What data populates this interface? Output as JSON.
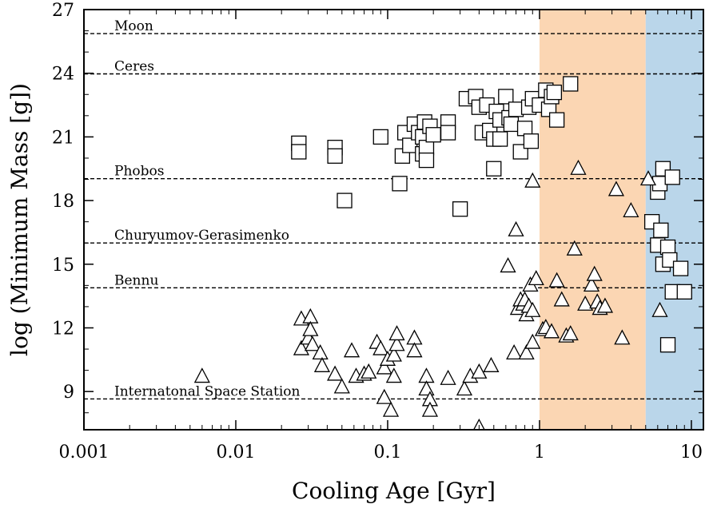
{
  "chart_data": {
    "type": "scatter",
    "title": "",
    "xlabel": "Cooling Age [Gyr]",
    "ylabel": "log (Minimum Mass [g])",
    "xscale": "log",
    "xlim": [
      0.001,
      12
    ],
    "ylim": [
      7.2,
      27
    ],
    "x_tick_values": [
      0.001,
      0.01,
      0.1,
      1,
      10
    ],
    "x_tick_labels": [
      "0.001",
      "0.01",
      "0.1",
      "1",
      "10"
    ],
    "y_tick_values": [
      9,
      12,
      15,
      18,
      21,
      24,
      27
    ],
    "y_tick_labels": [
      "9",
      "12",
      "15",
      "18",
      "21",
      "24",
      "27"
    ],
    "shaded_regions": [
      {
        "x_from": 1,
        "x_to": 5,
        "color": "#fbd6b3"
      },
      {
        "x_from": 5,
        "x_to": 12,
        "color": "#bad6ea"
      }
    ],
    "reference_lines": [
      {
        "label": "Moon",
        "y": 25.87
      },
      {
        "label": "Ceres",
        "y": 23.97
      },
      {
        "label": "Phobos",
        "y": 19.03
      },
      {
        "label": "Churyumov-Gerasimenko",
        "y": 16.0
      },
      {
        "label": "Bennu",
        "y": 13.89
      },
      {
        "label": "Internatonal Space Station",
        "y": 8.65
      }
    ],
    "series": [
      {
        "name": "squares",
        "marker": "square",
        "points": [
          [
            0.026,
            20.7
          ],
          [
            0.026,
            20.3
          ],
          [
            0.045,
            20.5
          ],
          [
            0.045,
            20.1
          ],
          [
            0.052,
            18.0
          ],
          [
            0.09,
            21.0
          ],
          [
            0.12,
            18.8
          ],
          [
            0.125,
            20.1
          ],
          [
            0.13,
            21.2
          ],
          [
            0.14,
            20.6
          ],
          [
            0.15,
            21.6
          ],
          [
            0.16,
            21.2
          ],
          [
            0.17,
            20.2
          ],
          [
            0.17,
            21.0
          ],
          [
            0.175,
            21.7
          ],
          [
            0.18,
            20.5
          ],
          [
            0.18,
            19.9
          ],
          [
            0.19,
            21.5
          ],
          [
            0.2,
            21.1
          ],
          [
            0.25,
            21.7
          ],
          [
            0.25,
            21.2
          ],
          [
            0.3,
            17.6
          ],
          [
            0.33,
            22.8
          ],
          [
            0.38,
            22.9
          ],
          [
            0.4,
            22.4
          ],
          [
            0.42,
            21.2
          ],
          [
            0.45,
            22.5
          ],
          [
            0.47,
            21.3
          ],
          [
            0.5,
            19.5
          ],
          [
            0.5,
            20.9
          ],
          [
            0.52,
            22.2
          ],
          [
            0.55,
            21.8
          ],
          [
            0.55,
            20.9
          ],
          [
            0.6,
            22.9
          ],
          [
            0.63,
            21.9
          ],
          [
            0.65,
            21.6
          ],
          [
            0.7,
            22.3
          ],
          [
            0.75,
            20.3
          ],
          [
            0.8,
            21.4
          ],
          [
            0.85,
            22.4
          ],
          [
            0.88,
            20.8
          ],
          [
            0.9,
            22.8
          ],
          [
            1.0,
            22.5
          ],
          [
            1.1,
            23.2
          ],
          [
            1.15,
            22.3
          ],
          [
            1.2,
            22.9
          ],
          [
            1.25,
            23.1
          ],
          [
            1.3,
            21.8
          ],
          [
            1.6,
            23.5
          ],
          [
            6.5,
            19.5
          ],
          [
            6.0,
            18.4
          ],
          [
            6.2,
            18.8
          ],
          [
            7.5,
            19.1
          ],
          [
            5.5,
            17.0
          ],
          [
            6.3,
            16.6
          ],
          [
            6.0,
            15.9
          ],
          [
            7.0,
            15.8
          ],
          [
            6.5,
            15.0
          ],
          [
            7.2,
            15.2
          ],
          [
            8.5,
            14.8
          ],
          [
            7.5,
            13.7
          ],
          [
            9.0,
            13.7
          ],
          [
            7.0,
            11.2
          ]
        ]
      },
      {
        "name": "triangles",
        "marker": "triangle",
        "points": [
          [
            0.006,
            9.7
          ],
          [
            0.027,
            12.4
          ],
          [
            0.027,
            11.0
          ],
          [
            0.03,
            11.5
          ],
          [
            0.031,
            12.5
          ],
          [
            0.031,
            11.9
          ],
          [
            0.032,
            11.2
          ],
          [
            0.036,
            10.8
          ],
          [
            0.037,
            10.2
          ],
          [
            0.045,
            9.8
          ],
          [
            0.05,
            9.2
          ],
          [
            0.058,
            10.9
          ],
          [
            0.062,
            9.7
          ],
          [
            0.07,
            9.8
          ],
          [
            0.075,
            9.9
          ],
          [
            0.085,
            11.3
          ],
          [
            0.09,
            11.0
          ],
          [
            0.095,
            10.1
          ],
          [
            0.095,
            8.7
          ],
          [
            0.1,
            10.5
          ],
          [
            0.105,
            8.1
          ],
          [
            0.11,
            9.7
          ],
          [
            0.11,
            10.7
          ],
          [
            0.115,
            11.2
          ],
          [
            0.115,
            11.7
          ],
          [
            0.15,
            11.5
          ],
          [
            0.15,
            10.9
          ],
          [
            0.18,
            9.7
          ],
          [
            0.18,
            9.1
          ],
          [
            0.19,
            8.6
          ],
          [
            0.19,
            8.1
          ],
          [
            0.25,
            9.6
          ],
          [
            0.32,
            9.1
          ],
          [
            0.35,
            9.7
          ],
          [
            0.4,
            7.3
          ],
          [
            0.4,
            9.9
          ],
          [
            0.48,
            10.2
          ],
          [
            0.62,
            14.9
          ],
          [
            0.68,
            10.8
          ],
          [
            0.7,
            16.6
          ],
          [
            0.72,
            12.9
          ],
          [
            0.75,
            13.3
          ],
          [
            0.78,
            13.1
          ],
          [
            0.8,
            13.3
          ],
          [
            0.82,
            12.6
          ],
          [
            0.82,
            10.8
          ],
          [
            0.85,
            13.0
          ],
          [
            0.87,
            14.0
          ],
          [
            0.9,
            12.8
          ],
          [
            0.9,
            11.3
          ],
          [
            0.9,
            18.9
          ],
          [
            0.95,
            14.3
          ],
          [
            1.05,
            11.9
          ],
          [
            1.1,
            12.0
          ],
          [
            1.2,
            11.8
          ],
          [
            1.3,
            14.2
          ],
          [
            1.4,
            13.3
          ],
          [
            1.5,
            11.6
          ],
          [
            1.6,
            11.7
          ],
          [
            1.7,
            15.7
          ],
          [
            1.8,
            19.5
          ],
          [
            2.0,
            13.1
          ],
          [
            2.2,
            14.0
          ],
          [
            2.3,
            14.5
          ],
          [
            2.4,
            13.2
          ],
          [
            2.5,
            12.9
          ],
          [
            2.7,
            13.0
          ],
          [
            3.2,
            18.5
          ],
          [
            3.5,
            11.5
          ],
          [
            4.0,
            17.5
          ],
          [
            5.2,
            19.0
          ],
          [
            6.2,
            12.8
          ]
        ]
      }
    ]
  }
}
